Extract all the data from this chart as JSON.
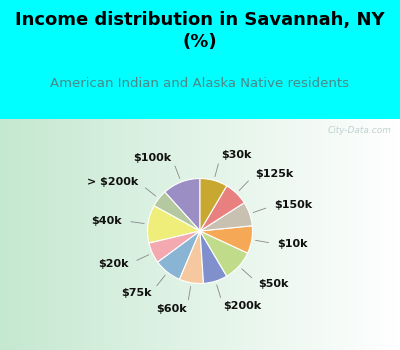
{
  "title": "Income distribution in Savannah, NY\n(%)",
  "subtitle": "American Indian and Alaska Native residents",
  "watermark": "City-Data.com",
  "background_color": "#00FFFF",
  "labels": [
    "$100k",
    "> $200k",
    "$40k",
    "$20k",
    "$75k",
    "$60k",
    "$200k",
    "$50k",
    "$10k",
    "$150k",
    "$125k",
    "$30k"
  ],
  "sizes": [
    11,
    5,
    11,
    6,
    8,
    7,
    7,
    9,
    8,
    7,
    7,
    8
  ],
  "colors": [
    "#9b8ec4",
    "#b5c9a0",
    "#f0ee7a",
    "#f4a9b0",
    "#8ab4d4",
    "#f5c8a0",
    "#8090cc",
    "#c0dc8a",
    "#f5a855",
    "#c8c0b0",
    "#e88080",
    "#c8a830"
  ],
  "label_fontsize": 8,
  "title_fontsize": 13,
  "subtitle_fontsize": 9.5,
  "title_color": "#000000",
  "subtitle_color": "#4a8888",
  "startangle": 90
}
